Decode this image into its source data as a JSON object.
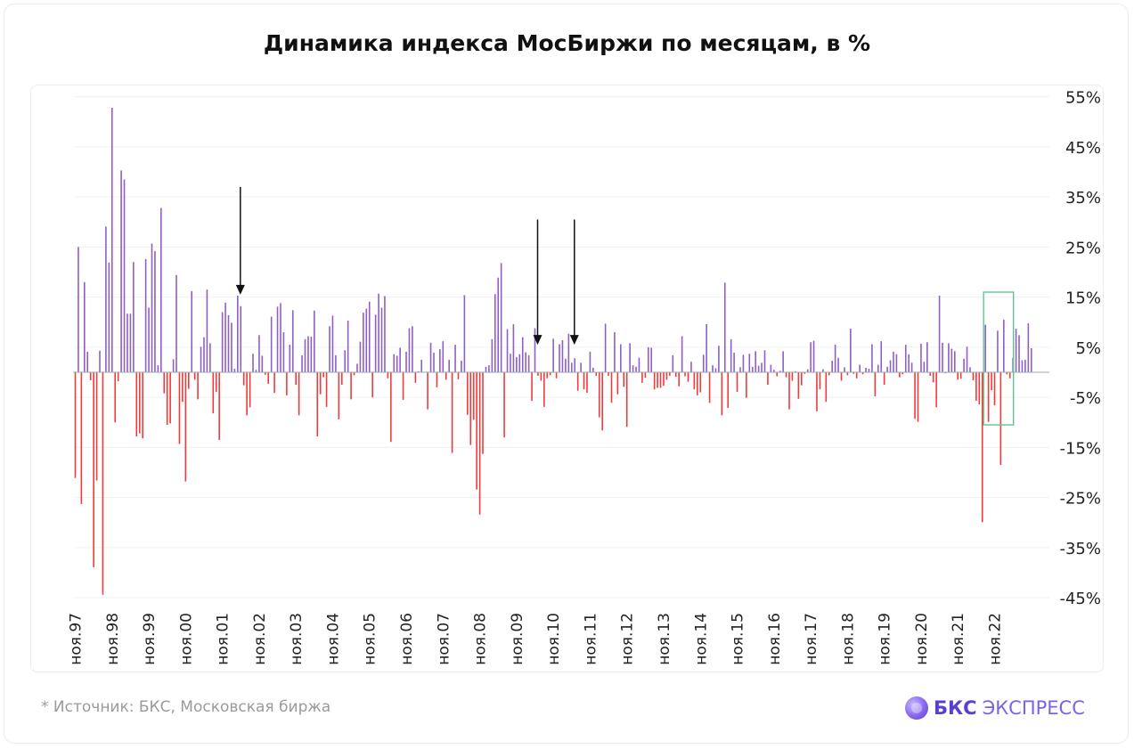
{
  "title": "Динамика индекса МосБиржи по месяцам, в %",
  "footnote": "*  Источник: БКС, Московская биржа",
  "brand": {
    "main": "БКС",
    "sub": "ЭКСПРЕСС"
  },
  "colors": {
    "positive": "#8e5fc4",
    "negative": "#ef3b3b",
    "grid": "#f0f0f0",
    "highlight": "#5cc98a",
    "arrow": "#111111"
  },
  "chart_data": {
    "type": "bar",
    "title": "Динамика индекса МосБиржи по месяцам, в %",
    "xlabel": "",
    "ylabel": "",
    "ylim": [
      -50,
      55
    ],
    "grid": true,
    "y_ticks": [
      55,
      45,
      35,
      25,
      15,
      5,
      -5,
      -15,
      -25,
      -35,
      -45
    ],
    "y_tick_labels": [
      "55%",
      "45%",
      "35%",
      "25%",
      "15%",
      "5%",
      "-5%",
      "-15%",
      "-25%",
      "-35%",
      "-45%"
    ],
    "x_tick_labels": [
      "ноя.97",
      "ноя.98",
      "ноя.99",
      "ноя.00",
      "ноя.01",
      "ноя.02",
      "ноя.03",
      "ноя.04",
      "ноя.05",
      "ноя.06",
      "ноя.07",
      "ноя.08",
      "ноя.09",
      "ноя.10",
      "ноя.11",
      "ноя.12",
      "ноя.13",
      "ноя.14",
      "ноя.15",
      "ноя.16",
      "ноя.17",
      "ноя.18",
      "ноя.19",
      "ноя.20",
      "ноя.21",
      "ноя.22"
    ],
    "start_month": "ноя.97",
    "values": [
      -21.1,
      25,
      -26.3,
      18,
      4.1,
      -1.6,
      -38.9,
      -21.6,
      4.3,
      -44.4,
      29.1,
      21.9,
      52.8,
      -10,
      -1.8,
      40.3,
      38.5,
      11.7,
      11.7,
      22,
      -12.8,
      -12.2,
      -13.2,
      22.6,
      12.9,
      25.7,
      24.2,
      1.4,
      32.8,
      -4.2,
      -10.5,
      -10.2,
      2.6,
      19.4,
      -14.3,
      -5.9,
      -21.8,
      -3.3,
      16.2,
      -1.5,
      -5.4,
      5.1,
      7,
      16.5,
      5.8,
      -8.2,
      -3.9,
      -13.5,
      12,
      13.9,
      11.4,
      9.9,
      0.7,
      15.3,
      13.2,
      -2.6,
      -8.6,
      -7,
      3.7,
      0.5,
      7.4,
      3.3,
      -0.5,
      -2.3,
      11.1,
      -4.1,
      13.1,
      13.8,
      8,
      -4.6,
      5.5,
      12.4,
      -2.5,
      -8.6,
      3.4,
      6.6,
      7.2,
      7.1,
      12.3,
      -12.8,
      -4.4,
      -1,
      -6.9,
      9.2,
      11.3,
      3.4,
      -9.4,
      -2.5,
      4.4,
      10.3,
      -5.4,
      -0.6,
      1.7,
      6.1,
      11.9,
      12.7,
      14.1,
      -5,
      11.5,
      15.7,
      12.9,
      15.2,
      -1.2,
      -13.9,
      3.6,
      3.3,
      4.9,
      -5.5,
      4.1,
      8.8,
      9.2,
      -2.1,
      0.2,
      2.5,
      0.1,
      -7.4,
      5.9,
      3.9,
      -3,
      4.6,
      6.2,
      -1.5,
      2.5,
      -16.1,
      5.5,
      -1.4,
      2.3,
      15.4,
      -8.5,
      -14.5,
      -9.5,
      -23.4,
      -28.4,
      -16.3,
      1.1,
      1.4,
      6.6,
      15.6,
      18.9,
      21.8,
      -13,
      8.6,
      3.7,
      9.6,
      3,
      3.6,
      7,
      4,
      3.4,
      -5.7,
      8.8,
      -0.7,
      -1.7,
      -6.9,
      -1.2,
      -0.6,
      6.7,
      -1.2,
      5.6,
      6.4,
      2.7,
      7.7,
      1.9,
      2.8,
      -3.7,
      1.9,
      -3.4,
      -4.1,
      4.1,
      0.9,
      -0.7,
      -9,
      -11.6,
      9.7,
      -0.7,
      -6.1,
      8,
      -4.4,
      5.6,
      -2.9,
      -10.9,
      5.8,
      1.4,
      1.1,
      2.9,
      -2.1,
      -1.1,
      5,
      4.9,
      -3.4,
      -3.1,
      -3.1,
      -2.7,
      -1.5,
      -0.7,
      3.4,
      -0.9,
      -2.8,
      7.2,
      -0.8,
      -1.9,
      2.1,
      -3.4,
      -4.6,
      -4,
      3.5,
      9.6,
      -6.1,
      1.4,
      0.8,
      5.3,
      -8.6,
      17.9,
      -7.1,
      6.6,
      3.9,
      -3.9,
      1,
      3.5,
      -5.1,
      3.7,
      1.1,
      4.2,
      1.3,
      1.9,
      4.4,
      -2.5,
      1.5,
      0.5,
      -0.8,
      0.3,
      4.2,
      -1,
      -7.4,
      -1.7,
      0.2,
      -5.3,
      -2.6,
      -0.3,
      0.6,
      6,
      6.3,
      -7.8,
      -3.4,
      0.6,
      -5.9,
      -0.6,
      2.3,
      5.5,
      2.9,
      -1.7,
      1,
      -0.6,
      8.7,
      -0.3,
      -1.2,
      1.5,
      -0.4,
      0.9,
      0.7,
      5.6,
      -4.8,
      1.5,
      6.2,
      -2.5,
      1.1,
      2.4,
      4.1,
      3.6,
      -1,
      -0.4,
      5.5,
      3.6,
      1.9,
      -9.3,
      -9.9,
      5.7,
      2.1,
      6,
      -0.7,
      -2,
      -7,
      15.3,
      5.9,
      -0.2,
      5.8,
      4.7,
      4.2,
      -1.5,
      -1.3,
      2.7,
      5.1,
      1,
      -1.6,
      -5.7,
      -6.4,
      -29.9,
      9.5,
      -9.9,
      -3.6,
      -6.6,
      8.3,
      -18.5,
      10.5,
      -0.4,
      -1.2,
      2.9,
      8.7,
      7.4,
      2.4,
      2.5,
      9.8,
      4.8
    ],
    "annotations": [
      {
        "type": "arrow",
        "x_label": "ноя.01",
        "month_index": 53,
        "from": 37,
        "to": 15.5
      },
      {
        "type": "arrow",
        "x_label": "ноя.09",
        "month_index": 150,
        "from": 30.5,
        "to": 5.5
      },
      {
        "type": "arrow",
        "x_label": "ноя.10",
        "month_index": 162,
        "from": 30.5,
        "to": 5.5
      },
      {
        "type": "highlight-box",
        "month_from": 297,
        "month_to": 305,
        "y_from": -10.5,
        "y_to": 16
      }
    ]
  }
}
